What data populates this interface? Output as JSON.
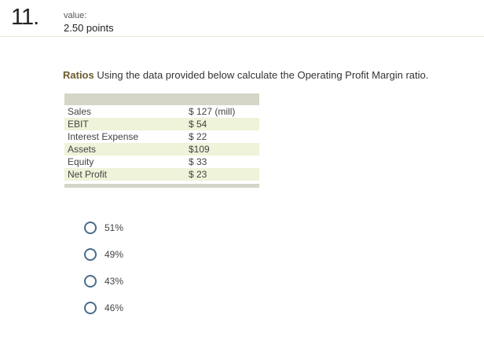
{
  "question": {
    "number": "11.",
    "value_label": "value:",
    "points": "2.50 points",
    "title": "Ratios",
    "text": "Using the data provided below calculate the Operating Profit Margin ratio."
  },
  "table": {
    "rows": [
      {
        "label": "Sales",
        "value": "$ 127 (mill)"
      },
      {
        "label": "EBIT",
        "value": "$  54"
      },
      {
        "label": "Interest Expense",
        "value": "$  22"
      },
      {
        "label": "Assets",
        "value": "$109"
      },
      {
        "label": "Equity",
        "value": "$  33"
      },
      {
        "label": "Net Profit",
        "value": "$  23"
      }
    ]
  },
  "options": [
    "51%",
    "49%",
    "43%",
    "46%"
  ],
  "colors": {
    "title_accent": "#6b5a2e",
    "table_band": "#d5d5c8",
    "row_alt": "#eef3d9",
    "radio_border": "#4a6c8c"
  }
}
